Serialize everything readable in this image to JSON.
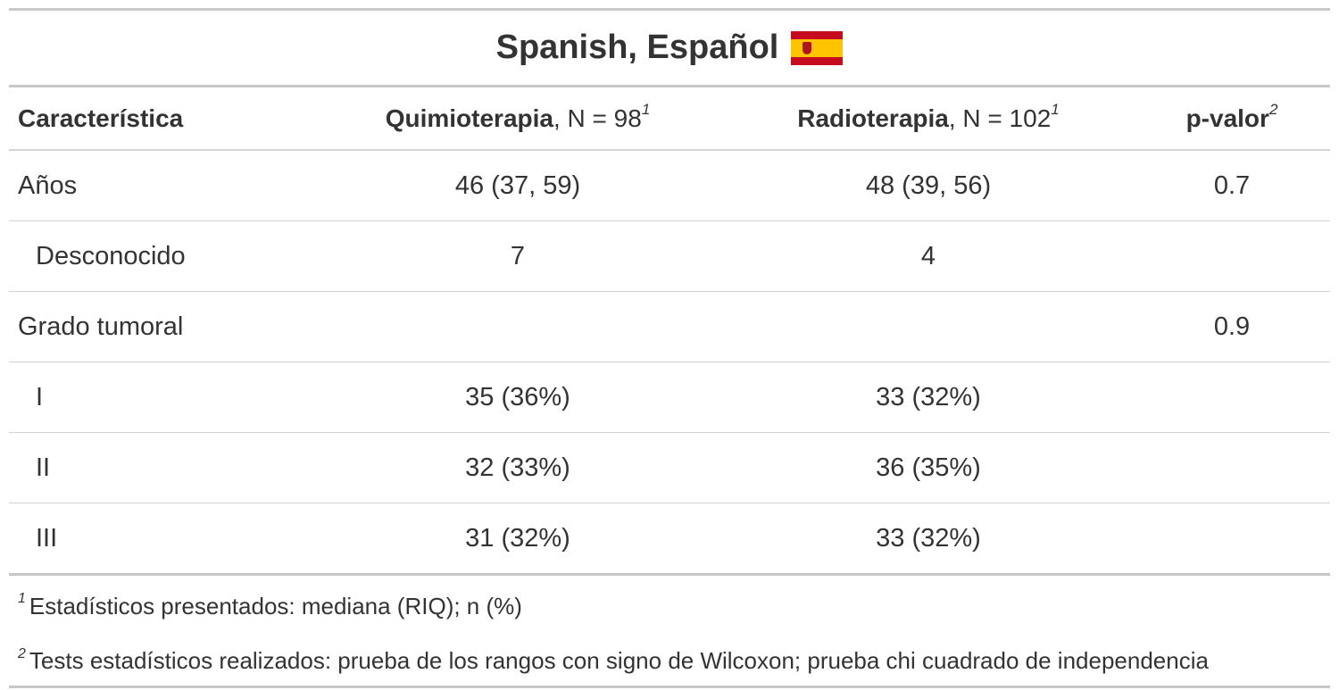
{
  "title": {
    "text": "Spanish, Español"
  },
  "header": {
    "characteristic": "Característica",
    "group1_name": "Quimioterapia",
    "group1_n": ", N = 98",
    "group2_name": "Radioterapia",
    "group2_n": ", N = 102",
    "pvalue": "p-valor",
    "fn_mark_1": "1",
    "fn_mark_2": "2"
  },
  "rows": [
    {
      "label": "Años",
      "g1": "46 (37, 59)",
      "g2": "48 (39, 56)",
      "p": "0.7"
    },
    {
      "label": "Desconocido",
      "g1": "7",
      "g2": "4",
      "p": ""
    },
    {
      "label": "Grado tumoral",
      "g1": "",
      "g2": "",
      "p": "0.9"
    },
    {
      "label": "I",
      "g1": "35 (36%)",
      "g2": "33 (32%)",
      "p": ""
    },
    {
      "label": "II",
      "g1": "32 (33%)",
      "g2": "36 (35%)",
      "p": ""
    },
    {
      "label": "III",
      "g1": "31 (32%)",
      "g2": "33 (32%)",
      "p": ""
    }
  ],
  "footnotes": [
    {
      "mark": "1",
      "text": "Estadísticos presentados: mediana (RIQ); n (%)"
    },
    {
      "mark": "2",
      "text": "Tests estadísticos realizados: prueba de los rangos con signo de Wilcoxon; prueba chi cuadrado de independencia"
    }
  ],
  "colors": {
    "text": "#333333",
    "rule": "#d3d3d3",
    "flag_red": "#c60b1e",
    "flag_yellow": "#ffc400"
  }
}
